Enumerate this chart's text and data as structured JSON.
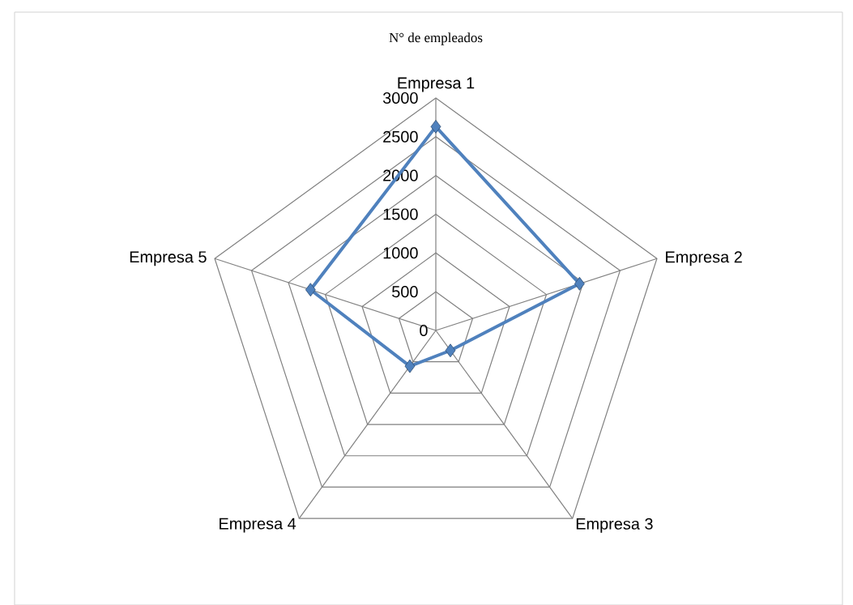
{
  "chart_data": {
    "type": "radar",
    "title": "N° de empleados",
    "categories": [
      "Empresa 1",
      "Empresa 2",
      "Empresa 3",
      "Empresa 4",
      "Empresa 5"
    ],
    "series": [
      {
        "color": "#4f81bd",
        "values": [
          2630,
          1950,
          320,
          570,
          1700
        ]
      }
    ],
    "ylim": [
      0,
      3000
    ],
    "yticks": [
      {
        "value": 0,
        "label": "0"
      },
      500,
      1000,
      1500,
      2000,
      2500,
      3000
    ],
    "grid": true,
    "marker": "diamond",
    "line_style": "solid"
  }
}
